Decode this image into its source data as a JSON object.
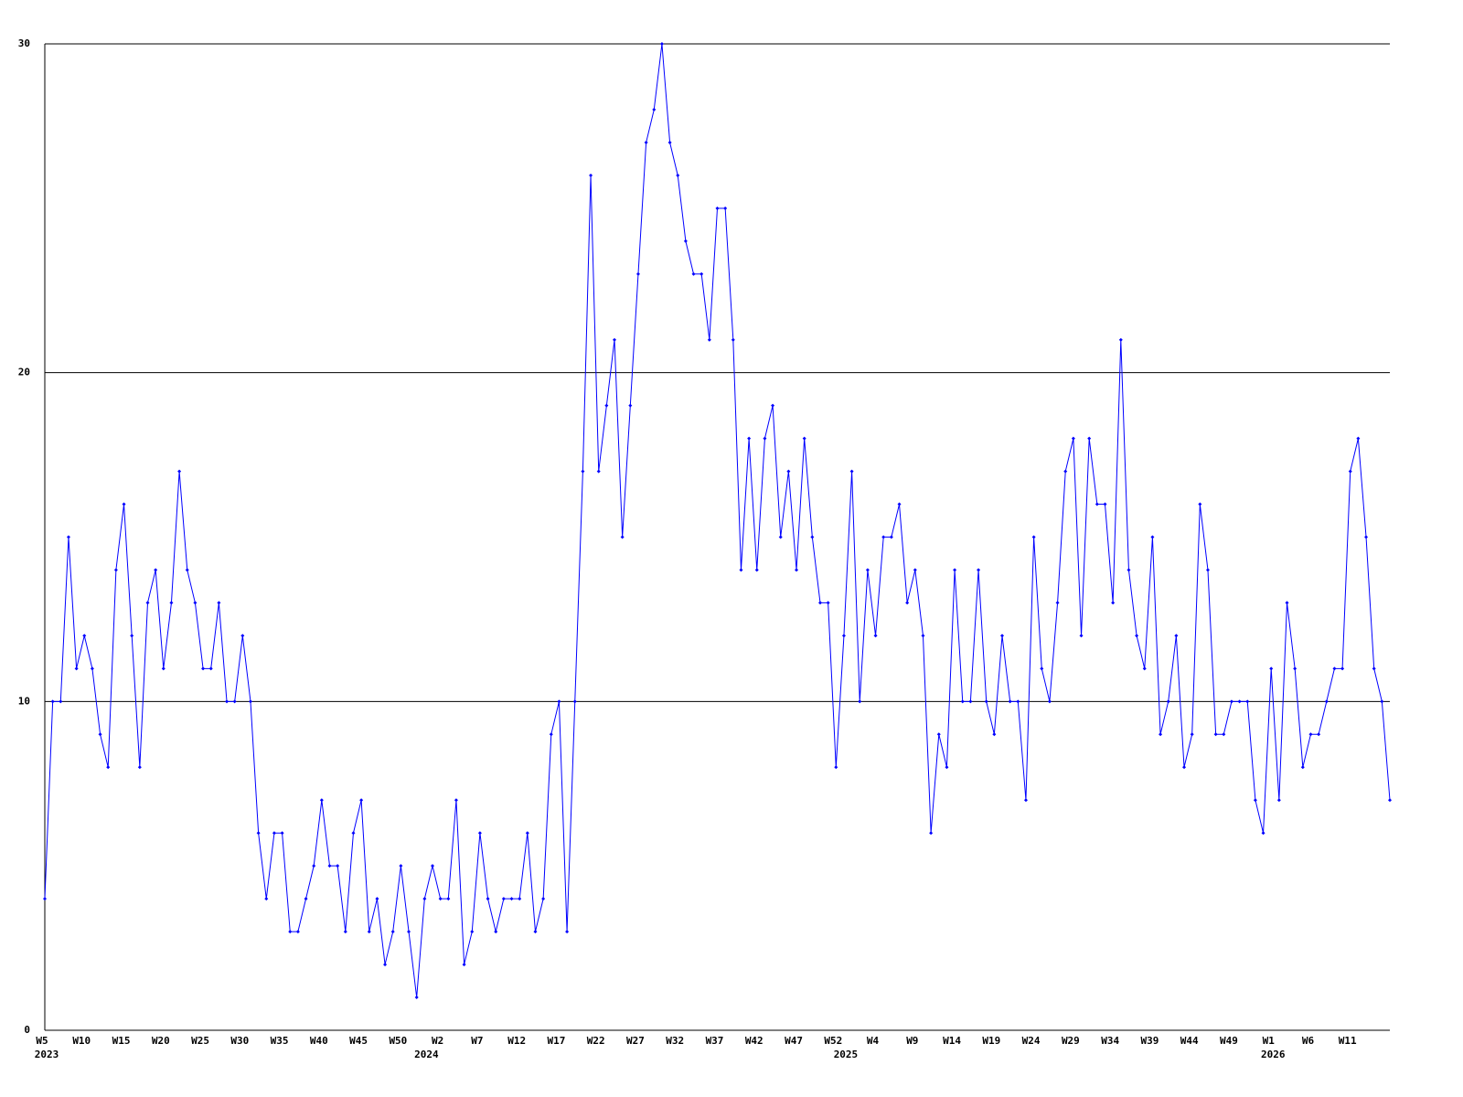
{
  "chart_data": {
    "type": "line",
    "categories": [
      "W5",
      null,
      null,
      null,
      null,
      "W10",
      null,
      null,
      null,
      null,
      "W15",
      null,
      null,
      null,
      null,
      "W20",
      null,
      null,
      null,
      null,
      "W25",
      null,
      null,
      null,
      null,
      "W30",
      null,
      null,
      null,
      null,
      "W35",
      null,
      null,
      null,
      null,
      "W40",
      null,
      null,
      null,
      null,
      "W45",
      null,
      null,
      null,
      null,
      "W50",
      null,
      null,
      null,
      null,
      "W2",
      null,
      null,
      null,
      null,
      "W7",
      null,
      null,
      null,
      null,
      "W12",
      null,
      null,
      null,
      null,
      "W17",
      null,
      null,
      null,
      null,
      "W22",
      null,
      null,
      null,
      null,
      "W27",
      null,
      null,
      null,
      null,
      "W32",
      null,
      null,
      null,
      null,
      "W37",
      null,
      null,
      null,
      null,
      "W42",
      null,
      null,
      null,
      null,
      "W47",
      null,
      null,
      null,
      null,
      "W52",
      null,
      null,
      null,
      null,
      "W4",
      null,
      null,
      null,
      null,
      "W9",
      null,
      null,
      null,
      null,
      "W14",
      null,
      null,
      null,
      null,
      "W19",
      null,
      null,
      null,
      null,
      "W24",
      null,
      null,
      null,
      null,
      "W29",
      null,
      null,
      null,
      null,
      "W34",
      null,
      null,
      null,
      null,
      "W39",
      null,
      null,
      null,
      null,
      "W44",
      null,
      null,
      null,
      null,
      "W49",
      null,
      null,
      null,
      null,
      "W1",
      null,
      null,
      null,
      null,
      "W6",
      null,
      null,
      null,
      null,
      "W11",
      null,
      null,
      null,
      null,
      null
    ],
    "category_years": [
      "2023",
      null,
      null,
      null,
      null,
      null,
      null,
      null,
      null,
      null,
      null,
      null,
      null,
      null,
      null,
      null,
      null,
      null,
      null,
      null,
      null,
      null,
      null,
      null,
      null,
      null,
      null,
      null,
      null,
      null,
      null,
      null,
      null,
      null,
      null,
      null,
      null,
      null,
      null,
      null,
      null,
      null,
      null,
      null,
      null,
      null,
      null,
      null,
      "2024",
      null,
      null,
      null,
      null,
      null,
      null,
      null,
      null,
      null,
      null,
      null,
      null,
      null,
      null,
      null,
      null,
      null,
      null,
      null,
      null,
      null,
      null,
      null,
      null,
      null,
      null,
      null,
      null,
      null,
      null,
      null,
      null,
      null,
      null,
      null,
      null,
      null,
      null,
      null,
      null,
      null,
      null,
      null,
      null,
      null,
      null,
      null,
      null,
      null,
      null,
      null,
      null,
      "2025",
      null,
      null,
      null,
      null,
      null,
      null,
      null,
      null,
      null,
      null,
      null,
      null,
      null,
      null,
      null,
      null,
      null,
      null,
      null,
      null,
      null,
      null,
      null,
      null,
      null,
      null,
      null,
      null,
      null,
      null,
      null,
      null,
      null,
      null,
      null,
      null,
      null,
      null,
      null,
      null,
      null,
      null,
      null,
      null,
      null,
      null,
      null,
      null,
      null,
      null,
      null,
      null,
      null,
      "2026",
      null,
      null,
      null,
      null,
      null,
      null,
      null,
      null,
      null,
      null,
      null,
      null,
      null,
      null,
      null,
      null
    ],
    "series": [
      {
        "color": "#0000ff",
        "values": [
          4,
          10,
          10,
          15,
          11,
          12,
          11,
          9,
          8,
          14,
          16,
          12,
          8,
          13,
          14,
          11,
          13,
          17,
          14,
          13,
          11,
          11,
          13,
          10,
          10,
          12,
          10,
          6,
          4,
          6,
          6,
          3,
          3,
          4,
          5,
          7,
          5,
          5,
          3,
          6,
          7,
          3,
          4,
          2,
          3,
          5,
          3,
          1,
          4,
          5,
          4,
          4,
          7,
          2,
          3,
          6,
          4,
          3,
          4,
          4,
          4,
          6,
          3,
          4,
          9,
          10,
          3,
          10,
          17,
          26,
          17,
          19,
          21,
          15,
          19,
          23,
          27,
          28,
          30,
          27,
          26,
          24,
          23,
          23,
          21,
          25,
          25,
          21,
          14,
          18,
          14,
          18,
          19,
          15,
          17,
          14,
          18,
          15,
          13,
          13,
          8,
          12,
          17,
          10,
          14,
          12,
          15,
          15,
          16,
          13,
          14,
          12,
          6,
          9,
          8,
          14,
          10,
          10,
          14,
          10,
          9,
          12,
          10,
          10,
          7,
          15,
          11,
          10,
          13,
          17,
          18,
          12,
          18,
          16,
          16,
          13,
          21,
          14,
          12,
          11,
          15,
          9,
          10,
          12,
          8,
          9,
          16,
          14,
          9,
          9,
          10,
          10,
          10,
          7,
          6,
          11,
          7,
          13,
          11,
          8,
          9,
          9,
          10,
          11,
          11,
          17,
          18,
          15,
          11,
          10,
          7
        ]
      }
    ],
    "ylim": [
      0,
      30
    ],
    "yticks": [
      0,
      10,
      20,
      30
    ],
    "grid": true
  }
}
